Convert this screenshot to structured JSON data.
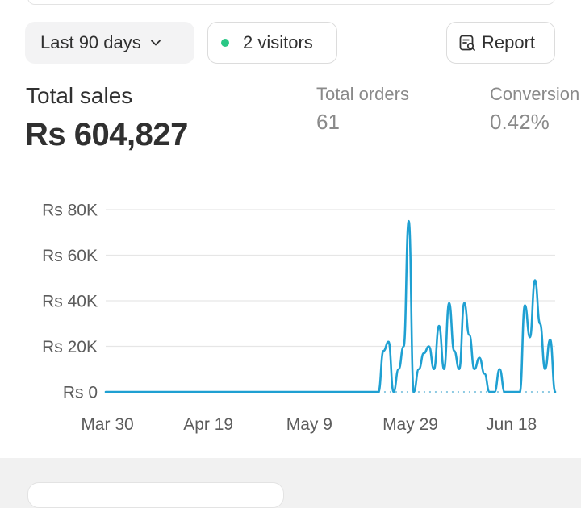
{
  "filters": {
    "date_range": "Last 90 days",
    "visitors": "2 visitors",
    "report": "Report"
  },
  "metrics": {
    "total_sales": {
      "label": "Total sales",
      "value": "Rs 604,827"
    },
    "total_orders": {
      "label": "Total orders",
      "value": "61"
    },
    "conversion": {
      "label": "Conversion",
      "value": "0.42%"
    }
  },
  "colors": {
    "accent": "#29c785",
    "line": "#1fa0d2",
    "grid": "#e6e6e6"
  },
  "chart_data": {
    "type": "line",
    "title": "",
    "xlabel": "",
    "ylabel": "",
    "y_tick_labels": [
      "Rs 0",
      "Rs 20K",
      "Rs 40K",
      "Rs 60K",
      "Rs 80K"
    ],
    "y_ticks": [
      0,
      20000,
      40000,
      60000,
      80000
    ],
    "ylim": [
      0,
      80000
    ],
    "x_tick_labels": [
      "Mar 30",
      "Apr 19",
      "May 9",
      "May 29",
      "Jun 18"
    ],
    "x_tick_days": [
      0,
      20,
      40,
      60,
      80
    ],
    "xlim": [
      0,
      89
    ],
    "series": [
      {
        "name": "Total sales",
        "x": [
          0,
          54,
          55,
          56,
          57,
          58,
          59,
          60,
          61,
          62,
          63,
          64,
          65,
          66,
          67,
          68,
          69,
          70,
          71,
          72,
          73,
          74,
          75,
          76,
          77,
          78,
          79,
          80,
          81,
          82,
          83,
          84,
          85,
          86,
          87,
          88,
          89
        ],
        "values": [
          0,
          0,
          18000,
          22000,
          0,
          10000,
          20000,
          75000,
          0,
          10000,
          17000,
          20000,
          10000,
          29000,
          10000,
          39000,
          18000,
          10000,
          39000,
          25000,
          10000,
          15000,
          8000,
          0,
          0,
          10000,
          0,
          0,
          0,
          0,
          38000,
          24000,
          49000,
          30000,
          10000,
          23000,
          0
        ]
      }
    ]
  }
}
